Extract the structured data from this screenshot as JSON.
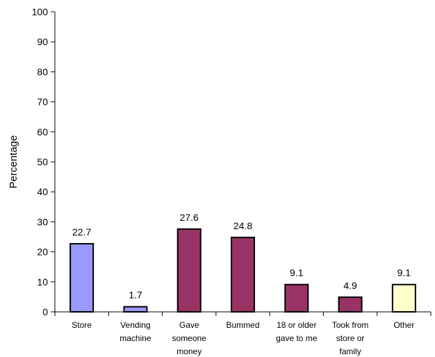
{
  "chart_data": {
    "type": "bar",
    "title": "",
    "xlabel": "",
    "ylabel": "Percentage",
    "ylim": [
      0,
      100
    ],
    "yticks": [
      0,
      10,
      20,
      30,
      40,
      50,
      60,
      70,
      80,
      90,
      100
    ],
    "grid": false,
    "legend": "none",
    "categories": [
      [
        "Store"
      ],
      [
        "Vending",
        "machine"
      ],
      [
        "Gave",
        "someone",
        "money"
      ],
      [
        "Bummed"
      ],
      [
        "18 or older",
        "gave to me"
      ],
      [
        "Took from",
        "store or",
        "family"
      ],
      [
        "Other"
      ]
    ],
    "values": [
      22.7,
      1.7,
      27.6,
      24.8,
      9.1,
      4.9,
      9.1
    ],
    "value_labels": [
      "22.7",
      "1.7",
      "27.6",
      "24.8",
      "9.1",
      "4.9",
      "9.1"
    ],
    "colors": [
      "#9999ff",
      "#9999ff",
      "#993366",
      "#993366",
      "#993366",
      "#993366",
      "#ffffcc"
    ],
    "edge_color": "#000000",
    "axis_color": "#000000"
  }
}
